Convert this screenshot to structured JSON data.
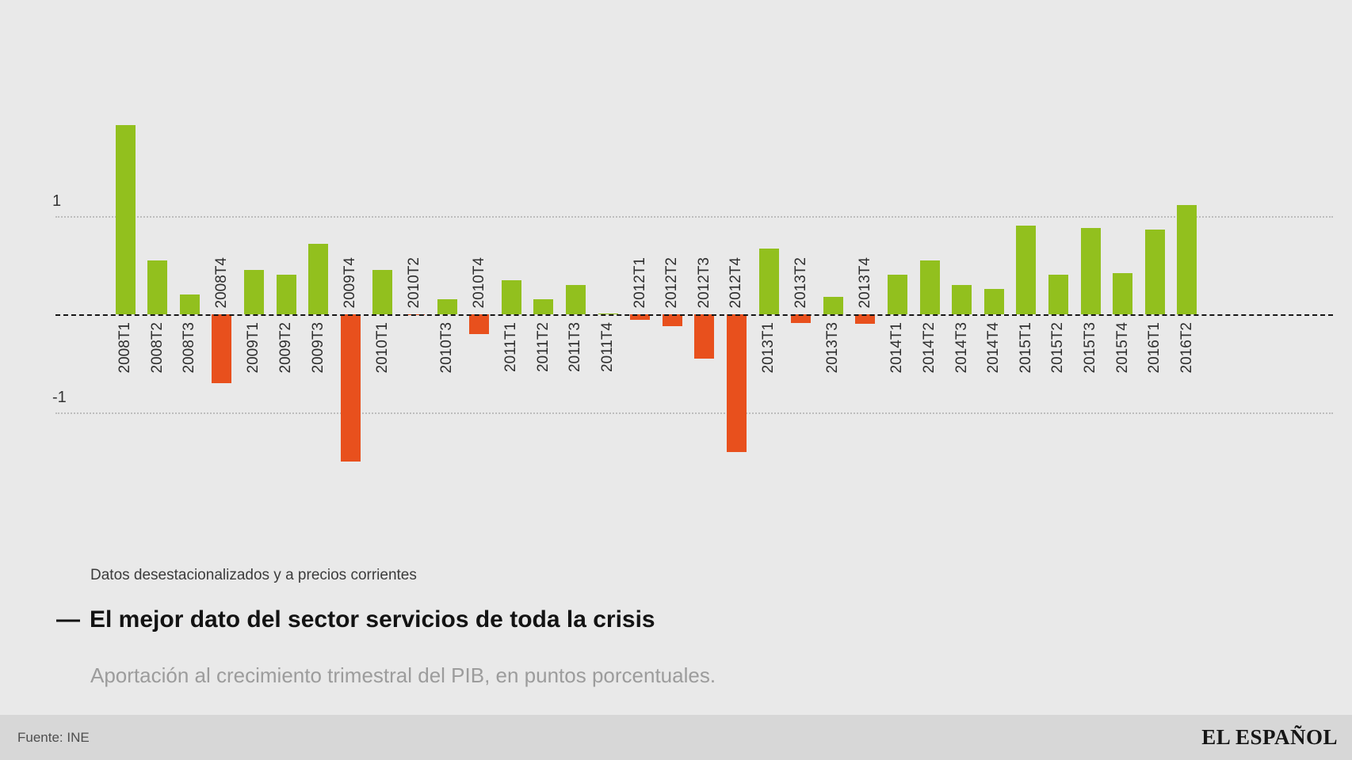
{
  "chart_data": {
    "type": "bar",
    "categories": [
      "2008T1",
      "2008T2",
      "2008T3",
      "2008T4",
      "2009T1",
      "2009T2",
      "2009T3",
      "2009T4",
      "2010T1",
      "2010T2",
      "2010T3",
      "2010T4",
      "2011T1",
      "2011T2",
      "2011T3",
      "2011T4",
      "2012T1",
      "2012T2",
      "2012T3",
      "2012T4",
      "2013T1",
      "2013T2",
      "2013T3",
      "2013T4",
      "2014T1",
      "2014T2",
      "2014T3",
      "2014T4",
      "2015T1",
      "2015T2",
      "2015T3",
      "2015T4",
      "2016T1",
      "2016T2"
    ],
    "values": [
      1.93,
      0.55,
      0.2,
      -0.7,
      0.45,
      0.4,
      0.72,
      -1.5,
      0.45,
      -0.01,
      0.15,
      -0.2,
      0.35,
      0.15,
      0.3,
      0.01,
      -0.06,
      -0.12,
      -0.45,
      -1.4,
      0.67,
      -0.09,
      0.18,
      -0.1,
      0.4,
      0.55,
      0.3,
      0.26,
      0.9,
      0.4,
      0.88,
      0.42,
      0.86,
      1.11
    ],
    "note": "Datos desestacionalizados y a precios corrientes",
    "title_dash": "—",
    "title": "El mejor dato del sector servicios de toda la crisis",
    "subtitle": "Aportación al crecimiento trimestral del PIB, en puntos porcentuales.",
    "xlabel": "",
    "ylabel": "",
    "ylim": [
      -1.75,
      2.1
    ],
    "yticks": [
      "1",
      "-1"
    ],
    "ytick_values": [
      1,
      -1
    ],
    "zero_line": true,
    "grid": "horizontal dotted at 1 and -1",
    "legend": "none",
    "colors": {
      "positive": "#92c01e",
      "negative": "#e8501d",
      "background": "#e9e9e9",
      "footer_background": "#d7d7d7"
    }
  },
  "footer": {
    "source": "Fuente: INE",
    "brand": "EL ESPAÑOL"
  }
}
